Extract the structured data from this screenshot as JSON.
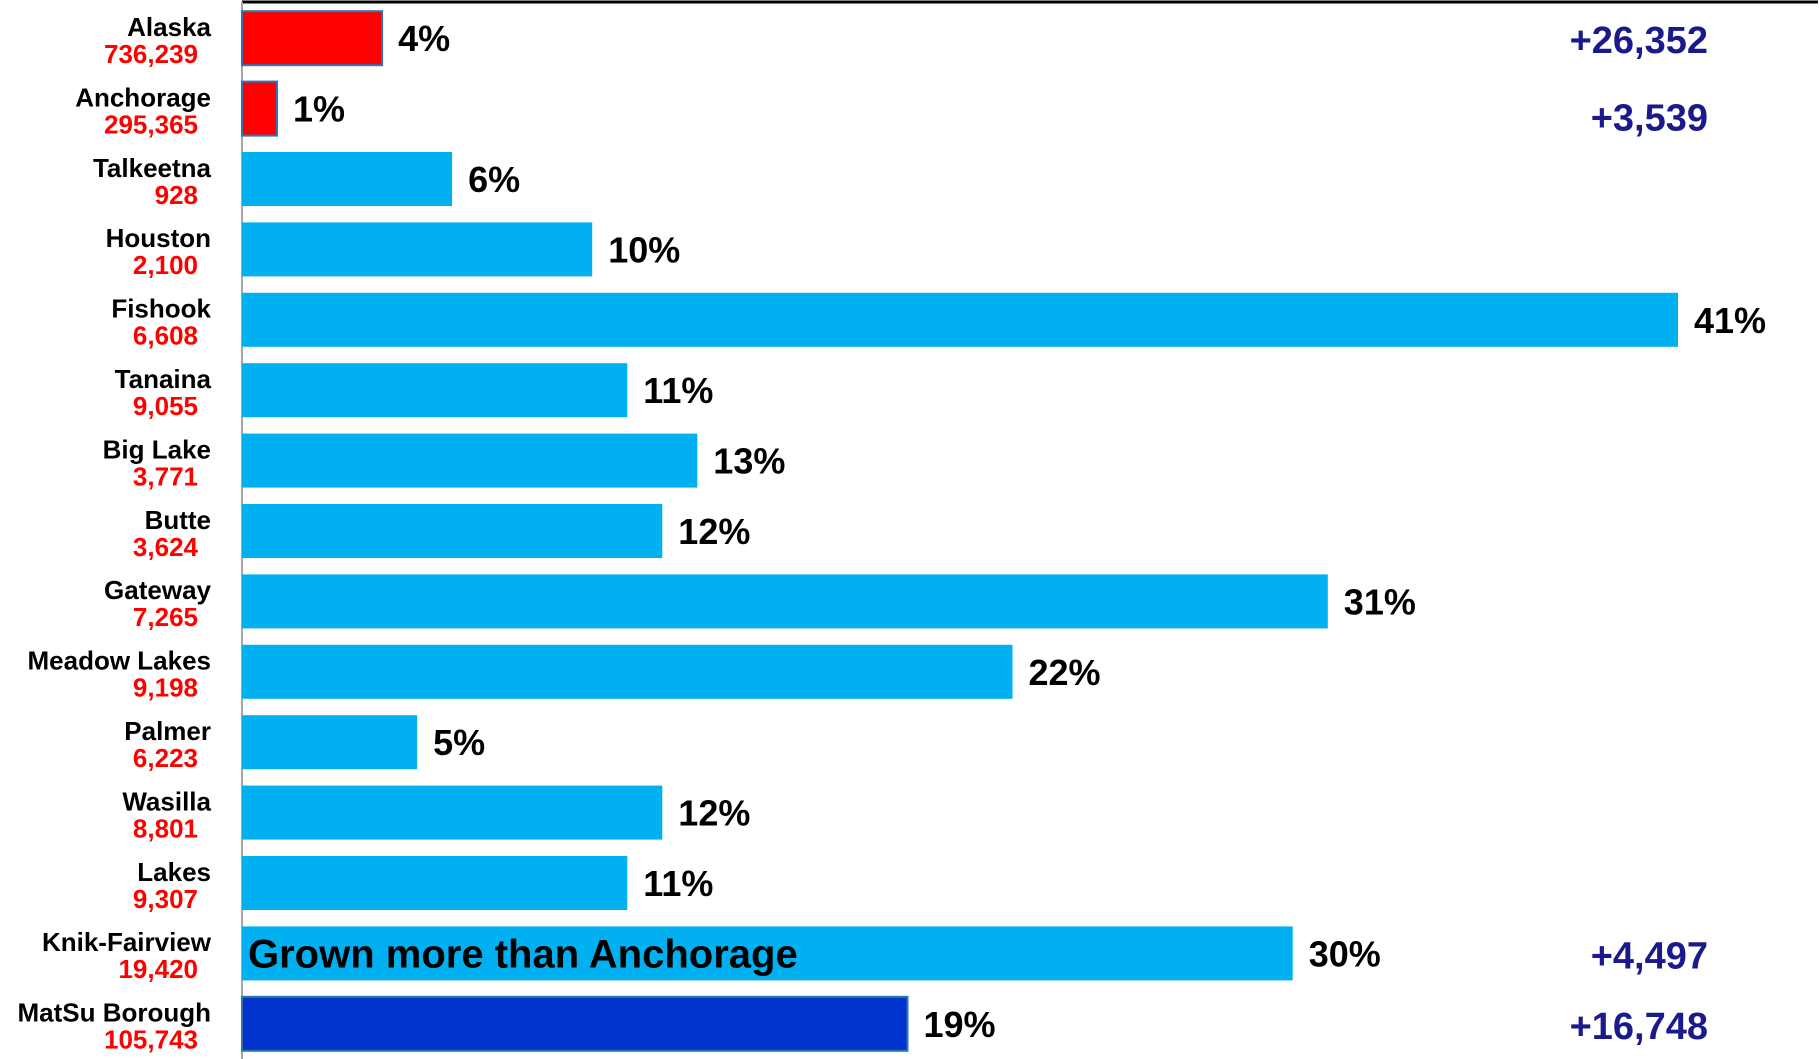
{
  "chart_data": {
    "type": "bar",
    "orientation": "horizontal",
    "categories": [
      "Alaska",
      "Anchorage",
      "Talkeetna",
      "Houston",
      "Fishook",
      "Tanaina",
      "Big Lake",
      "Butte",
      "Gateway",
      "Meadow Lakes",
      "Palmer",
      "Wasilla",
      "Lakes",
      "Knik-Fairview",
      "MatSu Borough"
    ],
    "populations": [
      "736,239",
      "295,365",
      "928",
      "2,100",
      "6,608",
      "9,055",
      "3,771",
      "3,624",
      "7,265",
      "9,198",
      "6,223",
      "8,801",
      "9,307",
      "19,420",
      "105,743"
    ],
    "values": [
      4,
      1,
      6,
      10,
      41,
      11,
      13,
      12,
      31,
      22,
      5,
      12,
      11,
      30,
      19
    ],
    "value_labels": [
      "4%",
      "1%",
      "6%",
      "10%",
      "41%",
      "11%",
      "13%",
      "12%",
      "31%",
      "22%",
      "5%",
      "12%",
      "11%",
      "30%",
      "19%"
    ],
    "bar_colors": [
      "#ff0000",
      "#ff0000",
      "#00b0f0",
      "#00b0f0",
      "#00b0f0",
      "#00b0f0",
      "#00b0f0",
      "#00b0f0",
      "#00b0f0",
      "#00b0f0",
      "#00b0f0",
      "#00b0f0",
      "#00b0f0",
      "#00b0f0",
      "#0033cc"
    ],
    "increases": [
      {
        "category": "Alaska",
        "label": "+26,352"
      },
      {
        "category": "Anchorage",
        "label": "+3,539"
      },
      {
        "category": "Knik-Fairview",
        "label": "+4,497"
      },
      {
        "category": "MatSu Borough",
        "label": "+16,748"
      }
    ],
    "annotation": {
      "category": "Knik-Fairview",
      "text": "Grown more than Anchorage"
    },
    "xlim": [
      0,
      45
    ],
    "grid": false,
    "colors": {
      "category_text": "#000000",
      "population_text": "#ff0000",
      "value_text": "#000000",
      "increase_text": "#1a1a8c",
      "axis": "#000000",
      "bar_outline": "#2e75b6"
    }
  }
}
